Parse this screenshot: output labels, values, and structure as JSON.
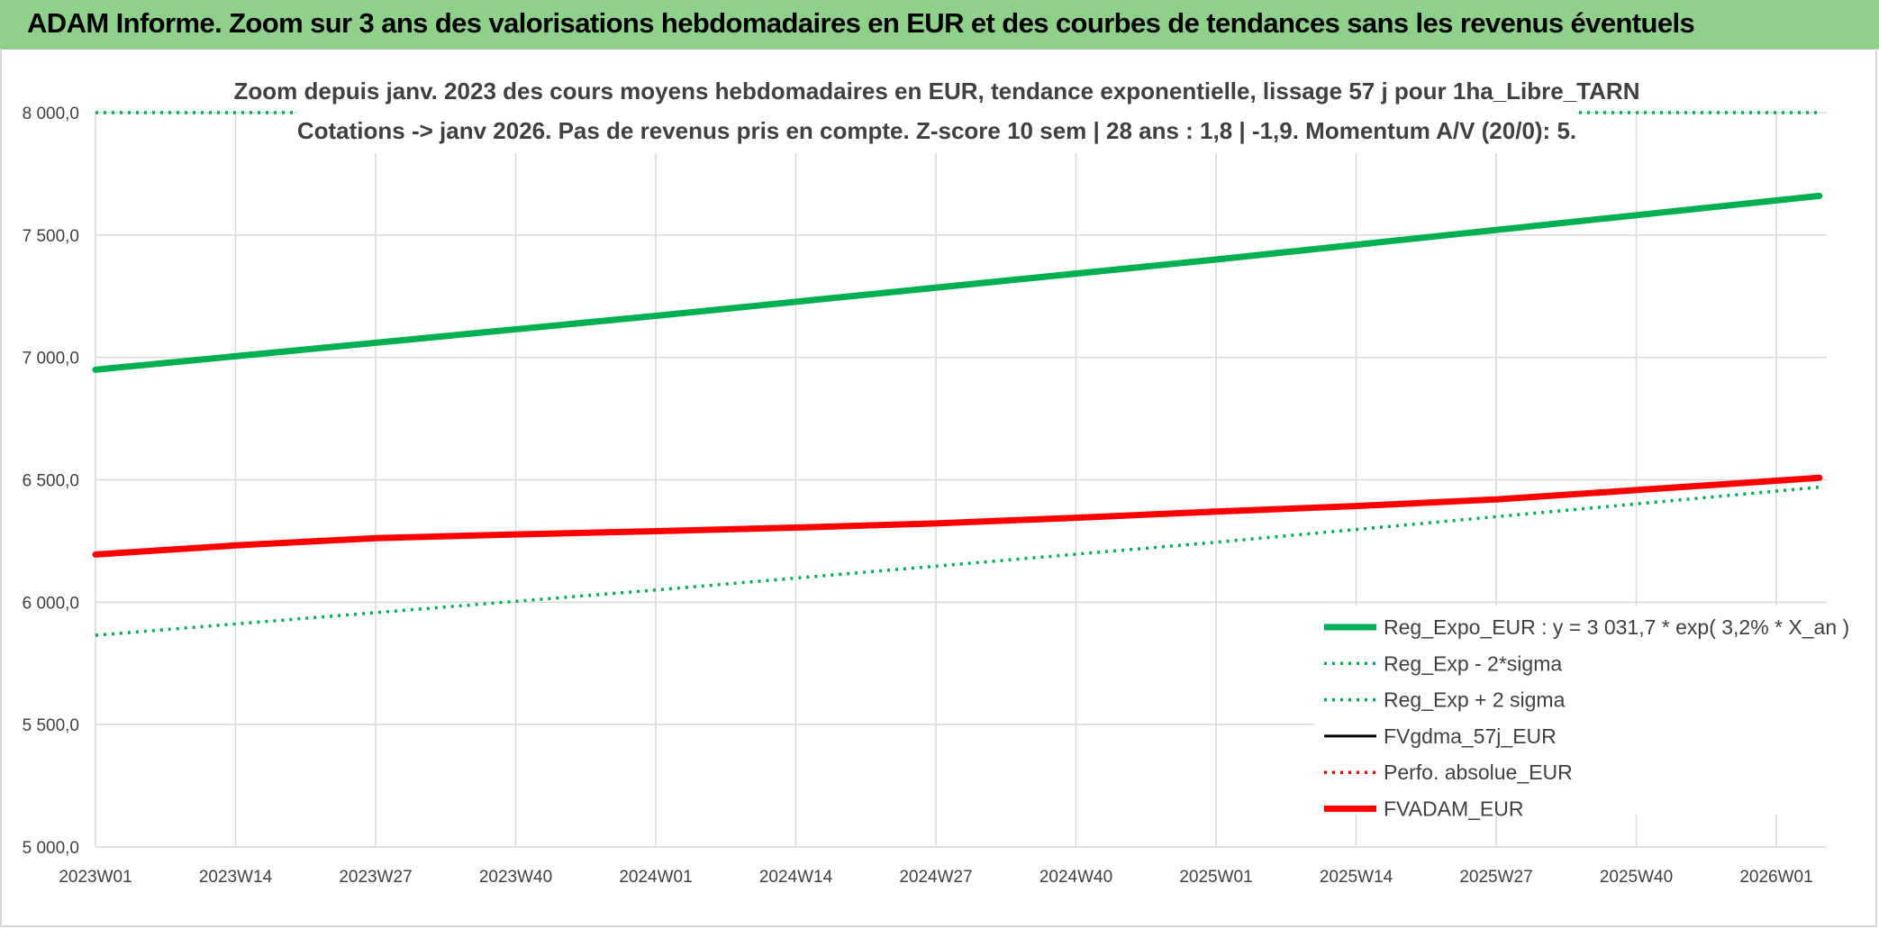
{
  "banner": {
    "title": "ADAM Informe. Zoom sur 3 ans des valorisations hebdomadaires en EUR et des courbes de tendances sans les revenus éventuels"
  },
  "colors": {
    "banner_bg": "#8fd18a",
    "reg_expo": "#00b050",
    "reg_minus": "#00b050",
    "reg_plus": "#00b050",
    "fvgdma": "#000000",
    "perfo": "#ff0000",
    "fvadam": "#ff0000",
    "grid": "#d9d9d9"
  },
  "chart_data": {
    "type": "line",
    "title": "Zoom depuis janv. 2023 des cours moyens hebdomadaires en EUR, tendance exponentielle, lissage 57 j pour 1ha_Libre_TARN",
    "subtitle": "Cotations -> janv 2026. Pas de revenus pris en compte. Z-score 10 sem | 28 ans : 1,8 | -1,9. Momentum A/V (20/0): 5.",
    "x_categories": [
      "2023W01",
      "2023W14",
      "2023W27",
      "2023W40",
      "2024W01",
      "2024W14",
      "2024W27",
      "2024W40",
      "2025W01",
      "2025W14",
      "2025W27",
      "2025W40",
      "2026W01"
    ],
    "y_ticks": [
      "5 000,0",
      "5 500,0",
      "6 000,0",
      "6 500,0",
      "7 000,0",
      "7 500,0",
      "8 000,0"
    ],
    "ylim": [
      5000,
      8000
    ],
    "grid": true,
    "legend_position": "bottom-right",
    "series": [
      {
        "name": "Reg_Expo_EUR : y = 3 031,7 * exp( 3,2% *  X_an )",
        "style": "solid-thick",
        "color": "#00b050",
        "points": [
          [
            "2023W01",
            6950
          ],
          [
            "2024W01",
            7170
          ],
          [
            "2025W01",
            7400
          ],
          [
            "2026W05",
            7660
          ]
        ]
      },
      {
        "name": "Reg_Exp - 2*sigma",
        "style": "dotted",
        "color": "#00b050",
        "points": [
          [
            "2023W01",
            5865
          ],
          [
            "2024W01",
            6050
          ],
          [
            "2025W01",
            6245
          ],
          [
            "2026W05",
            6470
          ]
        ]
      },
      {
        "name": "Reg_Exp + 2 sigma",
        "style": "dotted",
        "color": "#00b050",
        "points": [
          [
            "2023W01",
            8000
          ],
          [
            "2026W05",
            8000
          ]
        ]
      },
      {
        "name": "FVgdma_57j_EUR",
        "style": "solid",
        "color": "#000000",
        "points": [
          [
            "2023W01",
            6195
          ],
          [
            "2023W27",
            6262
          ],
          [
            "2024W01",
            6290
          ],
          [
            "2024W27",
            6320
          ],
          [
            "2025W01",
            6370
          ],
          [
            "2025W27",
            6420
          ],
          [
            "2026W05",
            6505
          ]
        ]
      },
      {
        "name": "Perfo. absolue_EUR",
        "style": "dotted",
        "color": "#ff0000",
        "points": [
          [
            "2023W01",
            6195
          ],
          [
            "2023W27",
            6262
          ],
          [
            "2024W01",
            6290
          ],
          [
            "2024W27",
            6320
          ],
          [
            "2025W01",
            6370
          ],
          [
            "2025W27",
            6420
          ],
          [
            "2026W05",
            6505
          ]
        ]
      },
      {
        "name": "FVADAM_EUR",
        "style": "solid-thick",
        "color": "#ff0000",
        "points": [
          [
            "2023W01",
            6195
          ],
          [
            "2023W14",
            6232
          ],
          [
            "2023W27",
            6262
          ],
          [
            "2023W40",
            6277
          ],
          [
            "2024W01",
            6290
          ],
          [
            "2024W14",
            6305
          ],
          [
            "2024W27",
            6322
          ],
          [
            "2024W40",
            6345
          ],
          [
            "2025W01",
            6370
          ],
          [
            "2025W14",
            6393
          ],
          [
            "2025W27",
            6420
          ],
          [
            "2025W40",
            6458
          ],
          [
            "2026W05",
            6508
          ]
        ]
      }
    ]
  }
}
